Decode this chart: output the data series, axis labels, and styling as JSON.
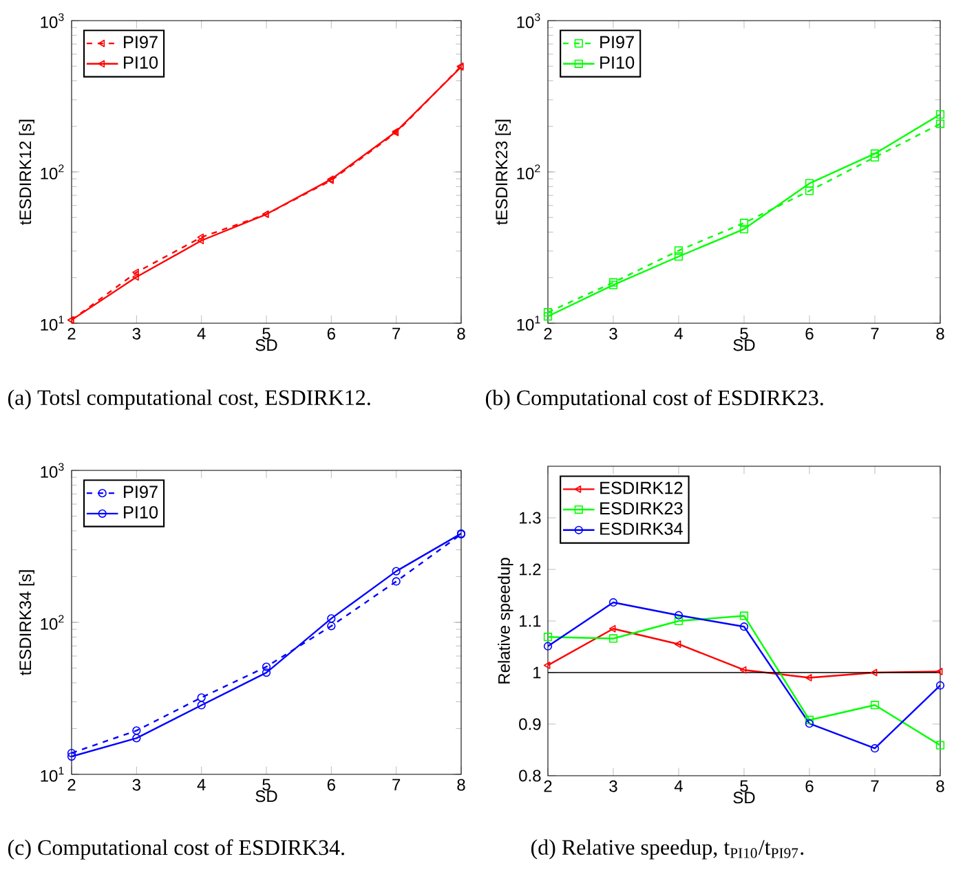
{
  "chart_data": [
    {
      "type": "line",
      "title": "(a) Totsl computational cost, ESDIRK12.",
      "xlabel": "SD",
      "ylabel": "tESDIRK12 [s]",
      "log": true,
      "legend": "top left",
      "marker": "triangle",
      "x": [
        2,
        3,
        4,
        5,
        6,
        7,
        8
      ],
      "xlim": [
        2,
        8
      ],
      "xticks": [
        2,
        3,
        4,
        5,
        6,
        7,
        8
      ],
      "ylim": [
        10,
        1000
      ],
      "yticks": [
        {
          "value": 10,
          "label": "10$^{1}$"
        },
        {
          "value": 100,
          "label": "10$^{2}$"
        },
        {
          "value": 1000,
          "label": "10$^{3}$"
        }
      ],
      "series": [
        {
          "name": "PI97",
          "color": "#ff0000",
          "line_style": "dashed",
          "values": [
            10.5,
            21.7,
            37,
            52.5,
            88,
            182,
            500
          ]
        },
        {
          "name": "PI10",
          "color": "#ff0000",
          "line_style": "solid",
          "values": [
            10.5,
            20.2,
            35.2,
            52.5,
            89.5,
            185,
            494
          ]
        }
      ]
    },
    {
      "type": "line",
      "title": "(b) Computational cost of ESDIRK23.",
      "xlabel": "SD",
      "ylabel": "tESDIRK23 [s]",
      "log": true,
      "legend": "top left",
      "marker": "square",
      "x": [
        2,
        3,
        4,
        5,
        6,
        7,
        8
      ],
      "xlim": [
        2,
        8
      ],
      "xticks": [
        2,
        3,
        4,
        5,
        6,
        7,
        8
      ],
      "ylim": [
        10,
        1000
      ],
      "yticks": [
        {
          "value": 10,
          "label": "10$^{1}$"
        },
        {
          "value": 100,
          "label": "10$^{2}$"
        },
        {
          "value": 1000,
          "label": "10$^{3}$"
        }
      ],
      "series": [
        {
          "name": "PI97",
          "color": "#00ff00",
          "line_style": "dashed",
          "values": [
            11.8,
            18.6,
            30.2,
            46,
            75,
            125,
            208
          ]
        },
        {
          "name": "PI10",
          "color": "#00ff00",
          "line_style": "solid",
          "values": [
            11.1,
            17.9,
            27.6,
            41.9,
            84,
            132,
            240
          ]
        }
      ]
    },
    {
      "type": "line",
      "title": "(c) Computational cost of ESDIRK34.",
      "xlabel": "SD",
      "ylabel": "tESDIRK34 [s]",
      "log": true,
      "legend": "top left",
      "marker": "circle",
      "x": [
        2,
        3,
        4,
        5,
        6,
        7,
        8
      ],
      "xlim": [
        2,
        8
      ],
      "xticks": [
        2,
        3,
        4,
        5,
        6,
        7,
        8
      ],
      "ylim": [
        10,
        1000
      ],
      "yticks": [
        {
          "value": 10,
          "label": "10$^{1}$"
        },
        {
          "value": 100,
          "label": "10$^{2}$"
        },
        {
          "value": 1000,
          "label": "10$^{3}$"
        }
      ],
      "series": [
        {
          "name": "PI97",
          "color": "#0000ff",
          "line_style": "dashed",
          "values": [
            13.8,
            19.4,
            32,
            51,
            94.6,
            186,
            380
          ]
        },
        {
          "name": "PI10",
          "color": "#0000ff",
          "line_style": "solid",
          "values": [
            13.1,
            17.3,
            28.5,
            46.7,
            106,
            217,
            384
          ]
        }
      ]
    },
    {
      "type": "line",
      "title": "(d) Relative speedup, t$_{PI10}$/t$_{PI97}$.",
      "xlabel": "SD",
      "ylabel": "Relative speedup",
      "legend": "top left",
      "x": [
        2,
        3,
        4,
        5,
        6,
        7,
        8
      ],
      "xlim": [
        2,
        8
      ],
      "xticks": [
        2,
        3,
        4,
        5,
        6,
        7,
        8
      ],
      "ylim": [
        0.8,
        1.4
      ],
      "yticks": [
        0.8,
        0.9,
        1,
        1.1,
        1.2,
        1.3
      ],
      "ref_lines": [
        {
          "axis": "y",
          "value": 1,
          "color": "#000000"
        }
      ],
      "series": [
        {
          "name": "ESDIRK12",
          "color": "#ff0000",
          "marker": "triangle",
          "values": [
            1.014,
            1.085,
            1.055,
            1.005,
            0.99,
            1.0,
            1.002
          ]
        },
        {
          "name": "ESDIRK23",
          "color": "#00ff00",
          "marker": "square",
          "values": [
            1.069,
            1.066,
            1.1,
            1.11,
            0.908,
            0.937,
            0.859
          ]
        },
        {
          "name": "ESDIRK34",
          "color": "#0000ff",
          "marker": "circle",
          "values": [
            1.051,
            1.136,
            1.111,
            1.089,
            0.901,
            0.853,
            0.975
          ]
        }
      ]
    }
  ]
}
